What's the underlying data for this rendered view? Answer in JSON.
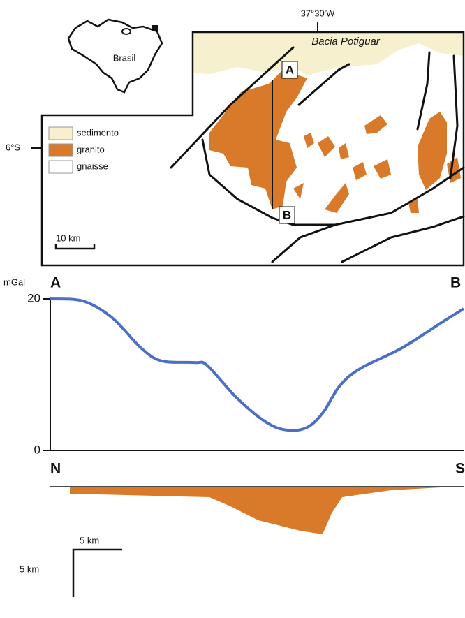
{
  "map": {
    "country": "Brasil",
    "longitude": "37°30'W",
    "latitude": "6°S",
    "basin": "Bacia Potiguar",
    "legend": [
      "sedimento",
      "granito",
      "gnaisse"
    ],
    "scale": "10 km",
    "start": "A",
    "end": "B"
  },
  "chart_data": {
    "type": "line",
    "y_label": "mGal",
    "start_label": "A",
    "end_label": "B",
    "x": [
      0,
      8,
      15,
      22,
      27,
      35,
      38,
      45,
      52,
      57,
      62,
      66,
      70,
      75,
      85,
      95,
      100
    ],
    "values": [
      20,
      19.7,
      17.5,
      13.5,
      11.8,
      11.6,
      11.2,
      7,
      3.8,
      2.7,
      3,
      5,
      8.5,
      10.8,
      13.5,
      17,
      18.7
    ],
    "color": "#4a6fc4",
    "xlim": [
      0,
      100
    ],
    "ylim": [
      0,
      20
    ],
    "yticks": [
      0,
      20
    ]
  },
  "section": {
    "north": "N",
    "south": "S",
    "horizontal_scale": "5 km",
    "vertical_scale": "5 km"
  }
}
